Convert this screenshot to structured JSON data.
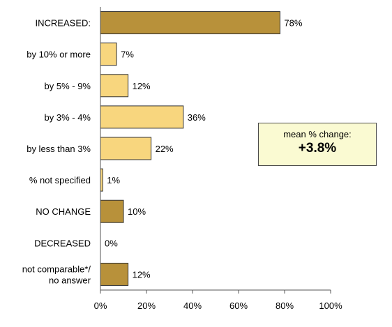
{
  "chart_data": {
    "type": "bar",
    "orientation": "horizontal",
    "categories": [
      [
        "INCREASED:"
      ],
      [
        "by 10% or more"
      ],
      [
        "by 5% - 9%"
      ],
      [
        "by 3% - 4%"
      ],
      [
        "by less than 3%"
      ],
      [
        "% not specified"
      ],
      [
        "NO CHANGE"
      ],
      [
        "DECREASED"
      ],
      [
        "not comparable*/",
        "no answer"
      ]
    ],
    "values": [
      78,
      7,
      12,
      36,
      22,
      1,
      10,
      0,
      12
    ],
    "value_labels": [
      "78%",
      "7%",
      "12%",
      "36%",
      "22%",
      "1%",
      "10%",
      "0%",
      "12%"
    ],
    "bar_colors": [
      "#b8913a",
      "#f8d67e",
      "#f8d67e",
      "#f8d67e",
      "#f8d67e",
      "#f8d67e",
      "#b8913a",
      "#b8913a",
      "#b8913a"
    ],
    "xlim": [
      0,
      100
    ],
    "x_ticks": [
      0,
      20,
      40,
      60,
      80,
      100
    ],
    "x_tick_labels": [
      "0%",
      "20%",
      "40%",
      "60%",
      "80%",
      "100%"
    ],
    "grid": false,
    "annotation": {
      "title": "mean % change:",
      "value": "+3.8%",
      "background": "#fafad2"
    }
  }
}
